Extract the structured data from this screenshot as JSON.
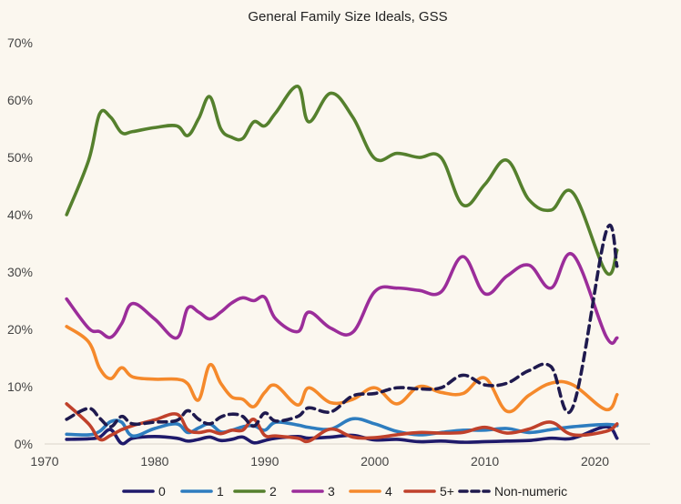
{
  "chart_data": {
    "type": "line",
    "title": "General Family Size Ideals, GSS",
    "xlabel": "",
    "ylabel": "",
    "xlim": [
      1970,
      2025
    ],
    "ylim": [
      0,
      70
    ],
    "x_ticks": [
      "1970",
      "1980",
      "1990",
      "2000",
      "2010",
      "2020"
    ],
    "y_ticks": [
      "0%",
      "10%",
      "20%",
      "30%",
      "40%",
      "50%",
      "60%",
      "70%"
    ],
    "grid": "none",
    "legend_position": "bottom",
    "series": [
      {
        "name": "0",
        "color": "#1f1a6b",
        "dashed": false,
        "x": [
          1972,
          1974,
          1975,
          1976,
          1977,
          1978,
          1980,
          1982,
          1983,
          1984,
          1985,
          1986,
          1987,
          1988,
          1989,
          1990,
          1991,
          1993,
          1994,
          1996,
          1998,
          2000,
          2002,
          2004,
          2006,
          2008,
          2010,
          2012,
          2014,
          2016,
          2018,
          2021,
          2022
        ],
        "y": [
          0.8,
          0.9,
          1.2,
          2.5,
          0.1,
          1.0,
          1.3,
          1.0,
          0.5,
          0.8,
          1.2,
          0.6,
          0.8,
          1.2,
          0.2,
          0.6,
          1.0,
          1.3,
          1.0,
          1.2,
          1.5,
          0.7,
          0.8,
          0.4,
          0.5,
          0.3,
          0.4,
          0.5,
          0.6,
          1.0,
          1.0,
          3.0,
          1.0
        ]
      },
      {
        "name": "1",
        "color": "#2e7dbf",
        "dashed": false,
        "x": [
          1972,
          1974,
          1975,
          1976,
          1977,
          1978,
          1980,
          1982,
          1983,
          1984,
          1985,
          1986,
          1987,
          1988,
          1989,
          1990,
          1991,
          1993,
          1994,
          1996,
          1998,
          2000,
          2002,
          2004,
          2006,
          2008,
          2010,
          2012,
          2014,
          2016,
          2018,
          2021,
          2022
        ],
        "y": [
          1.7,
          1.6,
          2.2,
          3.9,
          3.8,
          1.4,
          2.7,
          3.5,
          2.0,
          2.8,
          3.5,
          2.1,
          2.4,
          3.0,
          3.2,
          2.4,
          3.8,
          3.3,
          2.9,
          2.6,
          4.4,
          3.5,
          2.2,
          1.6,
          2.0,
          2.4,
          2.4,
          2.7,
          2.0,
          2.5,
          3.0,
          3.4,
          3.2
        ]
      },
      {
        "name": "2",
        "color": "#55802d",
        "dashed": false,
        "x": [
          1972,
          1974,
          1975,
          1976,
          1977,
          1978,
          1980,
          1982,
          1983,
          1984,
          1985,
          1986,
          1987,
          1988,
          1989,
          1990,
          1991,
          1993,
          1994,
          1996,
          1998,
          2000,
          2002,
          2004,
          2006,
          2008,
          2010,
          2012,
          2014,
          2016,
          2018,
          2021,
          2022
        ],
        "y": [
          40.0,
          49.5,
          57.6,
          57.0,
          54.3,
          54.5,
          55.2,
          55.5,
          53.8,
          56.8,
          60.6,
          55.0,
          53.5,
          53.3,
          56.2,
          55.5,
          57.8,
          62.4,
          56.2,
          61.2,
          57.0,
          49.8,
          50.7,
          50.0,
          50.0,
          41.7,
          45.3,
          49.5,
          42.6,
          40.8,
          43.8,
          30.0,
          33.8
        ]
      },
      {
        "name": "3",
        "color": "#9b2d9a",
        "dashed": false,
        "x": [
          1972,
          1974,
          1975,
          1976,
          1977,
          1978,
          1980,
          1982,
          1983,
          1984,
          1985,
          1986,
          1987,
          1988,
          1989,
          1990,
          1991,
          1993,
          1994,
          1996,
          1998,
          2000,
          2002,
          2004,
          2006,
          2008,
          2010,
          2012,
          2014,
          2016,
          2018,
          2021,
          2022
        ],
        "y": [
          25.3,
          20.2,
          19.6,
          18.6,
          21.0,
          24.5,
          21.8,
          18.5,
          23.7,
          23.0,
          21.8,
          23.0,
          24.6,
          25.5,
          25.0,
          25.6,
          21.8,
          19.6,
          23.0,
          20.2,
          19.5,
          26.6,
          27.2,
          26.8,
          26.5,
          32.7,
          26.2,
          29.3,
          31.2,
          27.2,
          33.0,
          18.8,
          18.5
        ]
      },
      {
        "name": "4",
        "color": "#f5892b",
        "dashed": false,
        "x": [
          1972,
          1974,
          1975,
          1976,
          1977,
          1978,
          1980,
          1982,
          1983,
          1984,
          1985,
          1986,
          1987,
          1988,
          1989,
          1990,
          1991,
          1993,
          1994,
          1996,
          1998,
          2000,
          2002,
          2004,
          2006,
          2008,
          2010,
          2012,
          2014,
          2016,
          2018,
          2021,
          2022
        ],
        "y": [
          20.5,
          17.8,
          13.2,
          11.4,
          13.3,
          11.7,
          11.3,
          11.3,
          10.5,
          7.7,
          13.8,
          10.6,
          8.2,
          7.8,
          6.5,
          9.0,
          10.2,
          6.8,
          9.8,
          7.2,
          7.8,
          9.8,
          7.0,
          10.0,
          9.0,
          8.8,
          11.5,
          5.7,
          8.5,
          10.6,
          10.3,
          6.0,
          8.6
        ]
      },
      {
        "name": "5+",
        "color": "#c0412b",
        "dashed": false,
        "x": [
          1972,
          1974,
          1975,
          1976,
          1977,
          1978,
          1980,
          1982,
          1983,
          1984,
          1985,
          1986,
          1987,
          1988,
          1989,
          1990,
          1991,
          1993,
          1994,
          1996,
          1998,
          2000,
          2002,
          2004,
          2006,
          2008,
          2010,
          2012,
          2014,
          2016,
          2018,
          2021,
          2022
        ],
        "y": [
          7.0,
          3.5,
          0.8,
          1.5,
          2.5,
          3.2,
          4.2,
          5.2,
          2.5,
          2.0,
          2.3,
          1.8,
          2.4,
          2.4,
          4.3,
          1.5,
          1.4,
          1.0,
          0.5,
          2.6,
          1.2,
          1.1,
          1.6,
          2.0,
          1.9,
          2.0,
          2.9,
          1.9,
          2.6,
          3.8,
          1.6,
          2.2,
          3.5
        ]
      },
      {
        "name": "Non-numeric",
        "color": "#1f1a4e",
        "dashed": true,
        "x": [
          1972,
          1974,
          1975,
          1976,
          1977,
          1978,
          1980,
          1982,
          1983,
          1984,
          1985,
          1986,
          1987,
          1988,
          1989,
          1990,
          1991,
          1993,
          1994,
          1996,
          1998,
          2000,
          2002,
          2004,
          2006,
          2008,
          2010,
          2012,
          2014,
          2016,
          2018,
          2021,
          2022
        ],
        "y": [
          4.3,
          6.2,
          4.5,
          3.0,
          4.8,
          3.5,
          3.8,
          4.1,
          5.8,
          4.3,
          3.5,
          4.7,
          5.2,
          4.8,
          3.1,
          5.4,
          4.0,
          4.8,
          6.3,
          5.6,
          8.4,
          8.8,
          9.8,
          9.6,
          9.8,
          12.0,
          10.3,
          10.6,
          12.8,
          13.5,
          6.5,
          37.0,
          31.0
        ]
      }
    ]
  }
}
